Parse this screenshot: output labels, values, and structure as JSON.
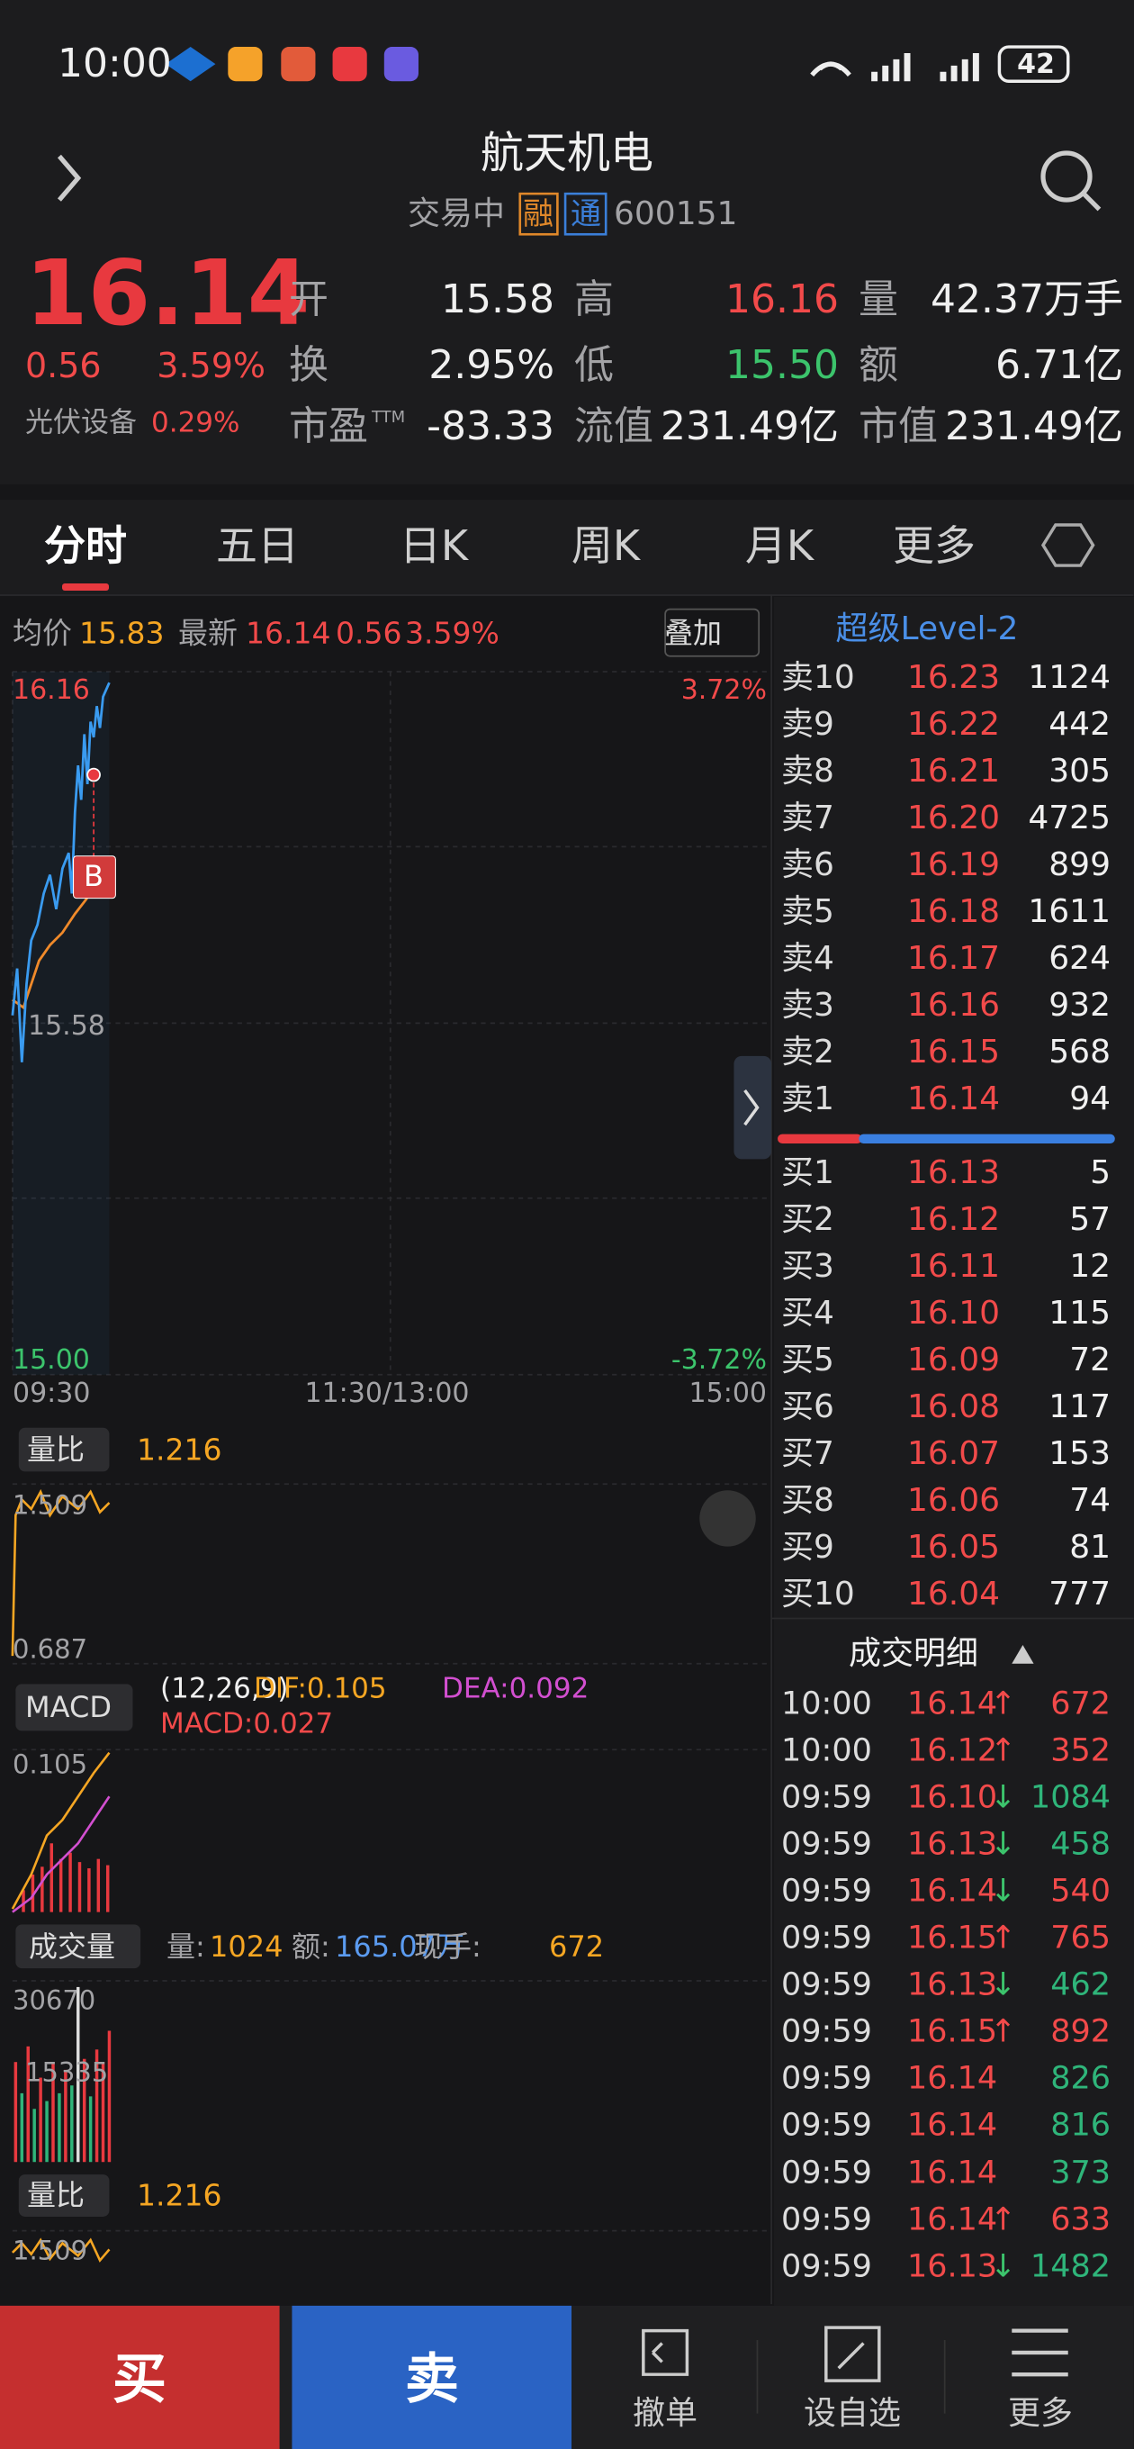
{
  "status": {
    "time": "10:00",
    "battery": "42"
  },
  "header": {
    "title": "航天机电",
    "status": "交易中",
    "tags": [
      "融",
      "通"
    ],
    "code": "600151"
  },
  "quote": {
    "price": "16.14",
    "change": "0.56",
    "pct": "3.59%",
    "sector": "光伏设备",
    "sector_pct": "0.29%",
    "stats": [
      {
        "label": "开",
        "value": "15.58"
      },
      {
        "label": "高",
        "value": "16.16",
        "color": "#f24a4a"
      },
      {
        "label": "量",
        "value": "42.37万手"
      },
      {
        "label": "换",
        "value": "2.95%"
      },
      {
        "label": "低",
        "value": "15.50",
        "color": "#3cc46c"
      },
      {
        "label": "额",
        "value": "6.71亿"
      },
      {
        "label": "市盈",
        "sup": "TTM",
        "value": "-83.33"
      },
      {
        "label": "流值",
        "value": "231.49亿"
      },
      {
        "label": "市值",
        "value": "231.49亿"
      }
    ]
  },
  "tabs": [
    "分时",
    "五日",
    "日K",
    "周K",
    "月K",
    "更多"
  ],
  "chart": {
    "avg_label": "均价",
    "avg": "15.83",
    "latest_label": "最新",
    "latest": "16.14",
    "change": "0.56",
    "pct": "3.59%",
    "overlay": "叠加",
    "high": "16.16",
    "high_pct": "3.72%",
    "mid": "15.58",
    "low": "15.00",
    "low_pct": "-3.72%",
    "times": [
      "09:30",
      "11:30/13:00",
      "15:00"
    ],
    "marker": "B"
  },
  "ratio": {
    "label": "量比",
    "value": "1.216",
    "top": "1.509",
    "bottom": "0.687"
  },
  "macd": {
    "label": "MACD",
    "params": "(12,26,9)",
    "dif": "DIF:0.105",
    "dea": "DEA:0.092",
    "macd": "MACD:0.027",
    "top": "0.105"
  },
  "volume": {
    "label": "成交量",
    "vol_label": "量:",
    "vol": "1024",
    "amt_label": "额:",
    "amt": "165.07万",
    "hand_label": "现手:",
    "hand": "672",
    "top": "30670",
    "mid": "15335"
  },
  "ratio2": {
    "label": "量比",
    "value": "1.216",
    "top": "1.509"
  },
  "level2": {
    "title": "超级Level-2",
    "asks": [
      [
        "卖10",
        "16.23",
        "1124"
      ],
      [
        "卖9",
        "16.22",
        "442"
      ],
      [
        "卖8",
        "16.21",
        "305"
      ],
      [
        "卖7",
        "16.20",
        "4725"
      ],
      [
        "卖6",
        "16.19",
        "899"
      ],
      [
        "卖5",
        "16.18",
        "1611"
      ],
      [
        "卖4",
        "16.17",
        "624"
      ],
      [
        "卖3",
        "16.16",
        "932"
      ],
      [
        "卖2",
        "16.15",
        "568"
      ],
      [
        "卖1",
        "16.14",
        "94"
      ]
    ],
    "bids": [
      [
        "买1",
        "16.13",
        "5"
      ],
      [
        "买2",
        "16.12",
        "57"
      ],
      [
        "买3",
        "16.11",
        "12"
      ],
      [
        "买4",
        "16.10",
        "115"
      ],
      [
        "买5",
        "16.09",
        "72"
      ],
      [
        "买6",
        "16.08",
        "117"
      ],
      [
        "买7",
        "16.07",
        "153"
      ],
      [
        "买8",
        "16.06",
        "74"
      ],
      [
        "买9",
        "16.05",
        "81"
      ],
      [
        "买10",
        "16.04",
        "777"
      ]
    ]
  },
  "trades": {
    "title": "成交明细",
    "rows": [
      {
        "time": "10:00",
        "price": "16.14",
        "arrow": "↑",
        "vol": "672",
        "vol_color": "#f24a4a"
      },
      {
        "time": "10:00",
        "price": "16.12",
        "arrow": "↑",
        "vol": "352",
        "vol_color": "#f24a4a"
      },
      {
        "time": "09:59",
        "price": "16.10",
        "arrow": "↓",
        "vol": "1084",
        "vol_color": "#2fb57a"
      },
      {
        "time": "09:59",
        "price": "16.13",
        "arrow": "↓",
        "vol": "458",
        "vol_color": "#2fb57a"
      },
      {
        "time": "09:59",
        "price": "16.14",
        "arrow": "↓",
        "vol": "540",
        "vol_color": "#f24a4a"
      },
      {
        "time": "09:59",
        "price": "16.15",
        "arrow": "↑",
        "vol": "765",
        "vol_color": "#f24a4a"
      },
      {
        "time": "09:59",
        "price": "16.13",
        "arrow": "↓",
        "vol": "462",
        "vol_color": "#2fb57a"
      },
      {
        "time": "09:59",
        "price": "16.15",
        "arrow": "↑",
        "vol": "892",
        "vol_color": "#f24a4a"
      },
      {
        "time": "09:59",
        "price": "16.14",
        "vol": "826",
        "vol_color": "#2fb57a"
      },
      {
        "time": "09:59",
        "price": "16.14",
        "vol": "816",
        "vol_color": "#2fb57a"
      },
      {
        "time": "09:59",
        "price": "16.14",
        "vol": "373",
        "vol_color": "#2fb57a"
      },
      {
        "time": "09:59",
        "price": "16.14",
        "arrow": "↑",
        "vol": "633",
        "vol_color": "#f24a4a"
      },
      {
        "time": "09:59",
        "price": "16.13",
        "arrow": "↓",
        "vol": "1482",
        "vol_color": "#2fb57a"
      }
    ]
  },
  "bottom": {
    "buy": "买",
    "sell": "卖",
    "buttons": [
      "撤单",
      "设自选",
      "更多"
    ]
  }
}
